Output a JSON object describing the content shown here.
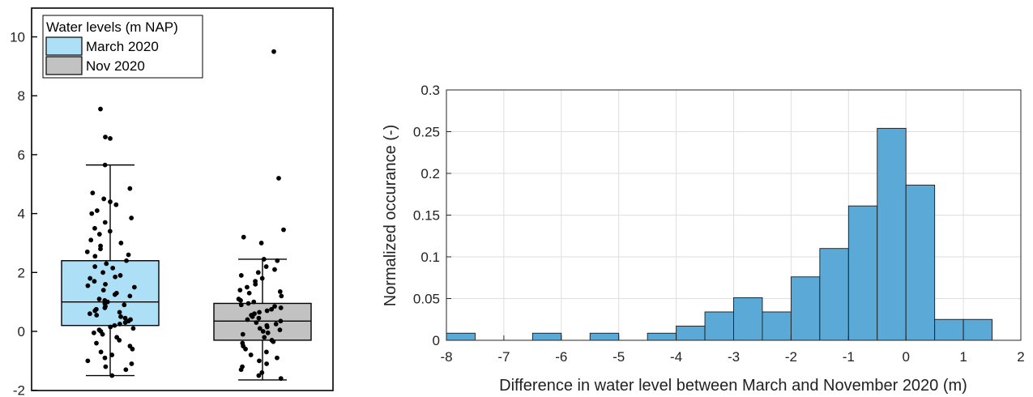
{
  "chart_data": [
    {
      "type": "box",
      "title": "",
      "ylim": [
        -2,
        11
      ],
      "yticks": [
        "-2",
        "0",
        "2",
        "4",
        "6",
        "8",
        "10"
      ],
      "ytick_values": [
        -2,
        0,
        2,
        4,
        6,
        8,
        10
      ],
      "legend": {
        "title": "Water levels (m NAP)",
        "placement": "top-left",
        "entries": [
          {
            "label": "March 2020",
            "color": "#ade0f7"
          },
          {
            "label": "Nov 2020",
            "color": "#c2c2c2"
          }
        ]
      },
      "series": [
        {
          "name": "March 2020",
          "color": "#ade0f7",
          "whisker_low": -1.5,
          "q1": 0.2,
          "median": 1.0,
          "q3": 2.4,
          "whisker_high": 5.65,
          "points": [
            7.55,
            6.6,
            6.55,
            5.65,
            4.85,
            4.7,
            4.5,
            4.4,
            4.3,
            4.1,
            4.0,
            3.85,
            3.7,
            3.5,
            3.4,
            3.3,
            3.1,
            3.0,
            2.9,
            2.8,
            2.7,
            2.6,
            2.55,
            2.4,
            2.3,
            2.2,
            2.15,
            2.0,
            1.9,
            1.85,
            1.8,
            1.7,
            1.6,
            1.55,
            1.5,
            1.4,
            1.3,
            1.25,
            1.2,
            1.1,
            1.05,
            1.0,
            0.95,
            0.9,
            0.85,
            0.8,
            0.75,
            0.7,
            0.65,
            0.6,
            0.55,
            0.5,
            0.45,
            0.4,
            0.35,
            0.3,
            0.25,
            0.2,
            0.15,
            0.1,
            0.05,
            0.0,
            -0.05,
            -0.1,
            -0.2,
            -0.3,
            -0.4,
            -0.5,
            -0.6,
            -0.7,
            -0.8,
            -0.9,
            -1.0,
            -1.1,
            -1.2,
            -1.3,
            -1.5
          ]
        },
        {
          "name": "Nov 2020",
          "color": "#c2c2c2",
          "whisker_low": -1.65,
          "q1": -0.3,
          "median": 0.35,
          "q3": 0.95,
          "whisker_high": 2.45,
          "points": [
            9.5,
            5.2,
            3.45,
            3.2,
            3.0,
            2.45,
            2.4,
            2.2,
            2.1,
            2.0,
            1.9,
            1.8,
            1.7,
            1.6,
            1.5,
            1.4,
            1.35,
            1.3,
            1.2,
            1.1,
            1.05,
            1.0,
            0.95,
            0.9,
            0.85,
            0.8,
            0.75,
            0.7,
            0.65,
            0.6,
            0.55,
            0.5,
            0.45,
            0.4,
            0.35,
            0.3,
            0.25,
            0.2,
            0.15,
            0.1,
            0.05,
            0.0,
            -0.05,
            -0.1,
            -0.2,
            -0.3,
            -0.35,
            -0.4,
            -0.5,
            -0.6,
            -0.7,
            -0.8,
            -0.9,
            -1.0,
            -1.1,
            -1.2,
            -1.3,
            -1.4,
            -1.5,
            -1.6
          ]
        }
      ]
    },
    {
      "type": "bar",
      "title": "",
      "xlabel": "Difference in water level between March and November 2020 (m)",
      "ylabel": "Normalized occurance (-)",
      "xlim": [
        -8,
        2
      ],
      "ylim": [
        0,
        0.3
      ],
      "xticks": [
        "-8",
        "-7",
        "-6",
        "-5",
        "-4",
        "-3",
        "-2",
        "-1",
        "0",
        "1",
        "2"
      ],
      "xtick_values": [
        -8,
        -7,
        -6,
        -5,
        -4,
        -3,
        -2,
        -1,
        0,
        1,
        2
      ],
      "yticks": [
        "0",
        "0.05",
        "0.1",
        "0.15",
        "0.2",
        "0.25",
        "0.3"
      ],
      "ytick_values": [
        0,
        0.05,
        0.1,
        0.15,
        0.2,
        0.25,
        0.3
      ],
      "grid": true,
      "bar_color": "#5ba9d6",
      "bins": [
        {
          "x0": -8.0,
          "x1": -7.5,
          "value": 0.0085
        },
        {
          "x0": -7.5,
          "x1": -7.0,
          "value": 0
        },
        {
          "x0": -7.0,
          "x1": -6.5,
          "value": 0
        },
        {
          "x0": -6.5,
          "x1": -6.0,
          "value": 0.0085
        },
        {
          "x0": -6.0,
          "x1": -5.5,
          "value": 0
        },
        {
          "x0": -5.5,
          "x1": -5.0,
          "value": 0.0085
        },
        {
          "x0": -5.0,
          "x1": -4.5,
          "value": 0
        },
        {
          "x0": -4.5,
          "x1": -4.0,
          "value": 0.0085
        },
        {
          "x0": -4.0,
          "x1": -3.5,
          "value": 0.017
        },
        {
          "x0": -3.5,
          "x1": -3.0,
          "value": 0.034
        },
        {
          "x0": -3.0,
          "x1": -2.5,
          "value": 0.051
        },
        {
          "x0": -2.5,
          "x1": -2.0,
          "value": 0.034
        },
        {
          "x0": -2.0,
          "x1": -1.5,
          "value": 0.076
        },
        {
          "x0": -1.5,
          "x1": -1.0,
          "value": 0.11
        },
        {
          "x0": -1.0,
          "x1": -0.5,
          "value": 0.161
        },
        {
          "x0": -0.5,
          "x1": 0.0,
          "value": 0.254
        },
        {
          "x0": 0.0,
          "x1": 0.5,
          "value": 0.186
        },
        {
          "x0": 0.5,
          "x1": 1.0,
          "value": 0.025
        },
        {
          "x0": 1.0,
          "x1": 1.5,
          "value": 0.025
        }
      ]
    }
  ]
}
